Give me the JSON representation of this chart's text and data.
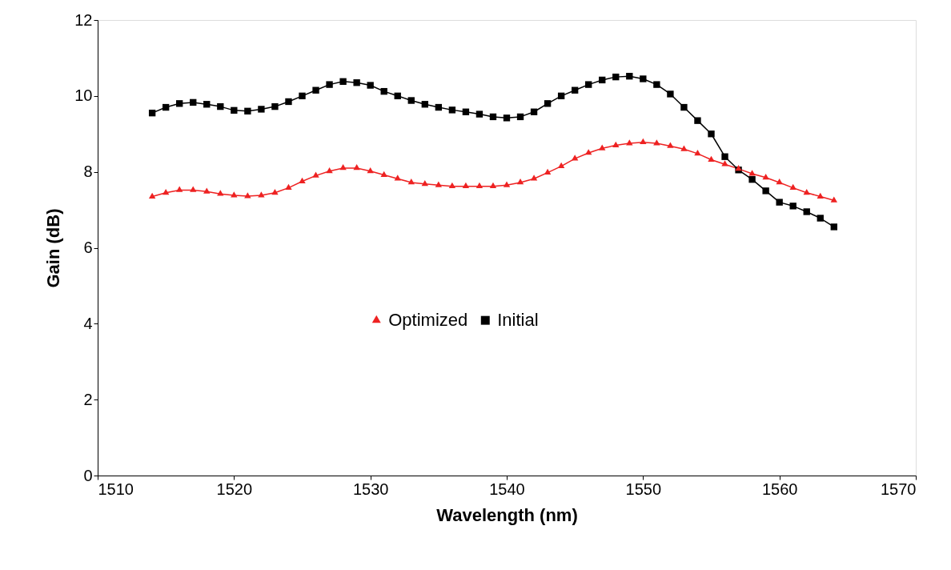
{
  "chart_data": {
    "type": "line",
    "xlabel": "Wavelength (nm)",
    "ylabel": "Gain (dB)",
    "x": [
      1514,
      1515,
      1516,
      1517,
      1518,
      1519,
      1520,
      1521,
      1522,
      1523,
      1524,
      1525,
      1526,
      1527,
      1528,
      1529,
      1530,
      1531,
      1532,
      1533,
      1534,
      1535,
      1536,
      1537,
      1538,
      1539,
      1540,
      1541,
      1542,
      1543,
      1544,
      1545,
      1546,
      1547,
      1548,
      1549,
      1550,
      1551,
      1552,
      1553,
      1554,
      1555,
      1556,
      1557,
      1558,
      1559,
      1560,
      1561,
      1562,
      1563,
      1564
    ],
    "series": [
      {
        "name": "Optimized",
        "color": "#ee2222",
        "marker": "triangle",
        "values": [
          7.35,
          7.45,
          7.52,
          7.52,
          7.48,
          7.42,
          7.38,
          7.36,
          7.38,
          7.45,
          7.58,
          7.75,
          7.9,
          8.02,
          8.1,
          8.1,
          8.02,
          7.92,
          7.82,
          7.72,
          7.68,
          7.65,
          7.62,
          7.62,
          7.62,
          7.62,
          7.65,
          7.72,
          7.82,
          7.98,
          8.15,
          8.35,
          8.5,
          8.62,
          8.7,
          8.75,
          8.78,
          8.75,
          8.68,
          8.6,
          8.48,
          8.32,
          8.2,
          8.08,
          7.95,
          7.85,
          7.72,
          7.58,
          7.45,
          7.35,
          7.25
        ]
      },
      {
        "name": "Initial",
        "color": "#000000",
        "marker": "square",
        "values": [
          9.55,
          9.7,
          9.8,
          9.83,
          9.78,
          9.72,
          9.62,
          9.6,
          9.65,
          9.72,
          9.85,
          10.0,
          10.15,
          10.3,
          10.38,
          10.35,
          10.28,
          10.12,
          10.0,
          9.88,
          9.78,
          9.7,
          9.63,
          9.58,
          9.52,
          9.45,
          9.42,
          9.45,
          9.58,
          9.8,
          10.0,
          10.15,
          10.3,
          10.42,
          10.5,
          10.52,
          10.45,
          10.3,
          10.05,
          9.7,
          9.35,
          9.0,
          8.4,
          8.05,
          7.8,
          7.5,
          7.2,
          7.1,
          6.95,
          6.78,
          6.55
        ]
      }
    ],
    "xlim": [
      1510,
      1570
    ],
    "xticks": [
      1510,
      1520,
      1530,
      1540,
      1550,
      1560,
      1570
    ],
    "ylim": [
      0,
      12
    ],
    "yticks": [
      0,
      2,
      4,
      6,
      8,
      10,
      12
    ],
    "grid": false,
    "legend": "center",
    "line_style": "solid"
  }
}
